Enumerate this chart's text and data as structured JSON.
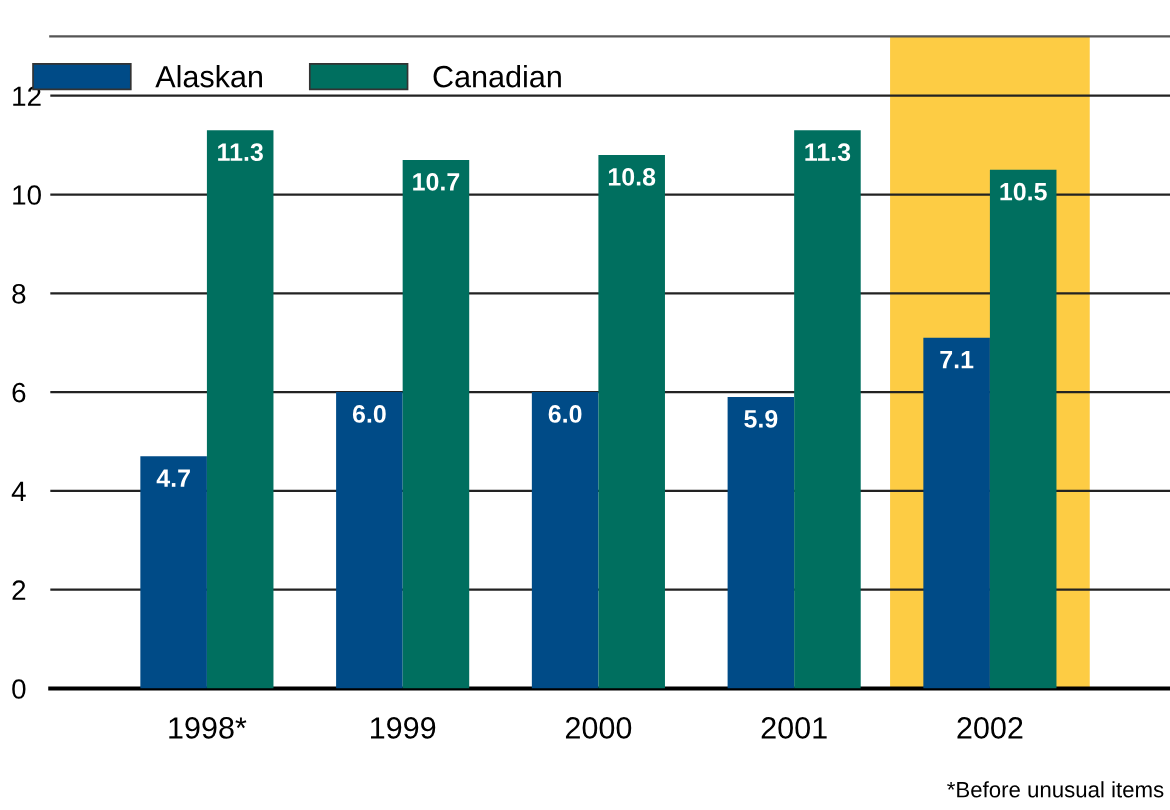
{
  "chart_data": {
    "type": "bar",
    "categories": [
      "1998*",
      "1999",
      "2000",
      "2001",
      "2002"
    ],
    "series": [
      {
        "name": "Alaskan",
        "color": "#004b87",
        "values": [
          4.7,
          6.0,
          6.0,
          5.9,
          7.1
        ]
      },
      {
        "name": "Canadian",
        "color": "#006f5f",
        "values": [
          11.3,
          10.7,
          10.8,
          11.3,
          10.5
        ]
      }
    ],
    "value_labels": [
      [
        "4.7",
        "6.0",
        "6.0",
        "5.9",
        "7.1"
      ],
      [
        "11.3",
        "10.7",
        "10.8",
        "11.3",
        "10.5"
      ]
    ],
    "ylim": [
      0,
      13.2
    ],
    "yticks": [
      0,
      2,
      4,
      6,
      8,
      10,
      12
    ],
    "grid": "y",
    "legend": "top left",
    "bands": [
      {
        "axis": "x",
        "from": "2002",
        "to": "2002",
        "color": "#fdcc44"
      }
    ],
    "annotations": [
      "*Before unusual items"
    ]
  }
}
